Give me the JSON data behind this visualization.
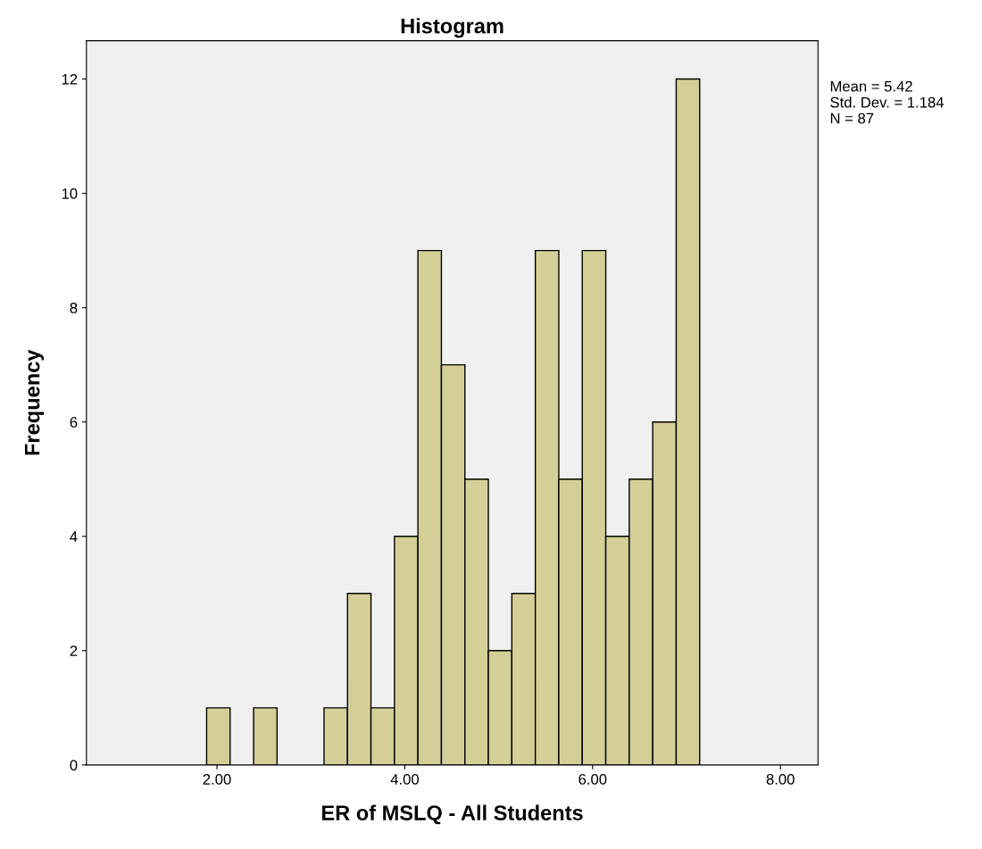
{
  "chart_data": {
    "type": "histogram",
    "title": "Histogram",
    "xlabel": "ER of MSLQ - All Students",
    "ylabel": "Frequency",
    "bins": [
      1.89,
      2.14,
      2.39,
      2.64,
      2.89,
      3.14,
      3.39,
      3.64,
      3.89,
      4.14,
      4.39,
      4.64,
      4.89,
      5.14,
      5.39,
      5.64,
      5.89,
      6.14,
      6.39,
      6.64,
      6.89,
      7.14
    ],
    "values": [
      1,
      0,
      1,
      0,
      0,
      1,
      3,
      1,
      4,
      9,
      7,
      5,
      2,
      3,
      9,
      5,
      9,
      4,
      5,
      6,
      12
    ],
    "color": "#d3cf97",
    "xlim": [
      0.61,
      8.4
    ],
    "xticks": [
      {
        "value": 2,
        "label": "2.00"
      },
      {
        "value": 4,
        "label": "4.00"
      },
      {
        "value": 6,
        "label": "6.00"
      },
      {
        "value": 8,
        "label": "8.00"
      }
    ],
    "ylim": [
      0,
      12.67
    ],
    "yticks": [
      0,
      2,
      4,
      6,
      8,
      10,
      12
    ],
    "annotations": [
      "Mean = 5.42\nStd. Dev. = 1.184\nN = 87"
    ],
    "grid": false
  }
}
